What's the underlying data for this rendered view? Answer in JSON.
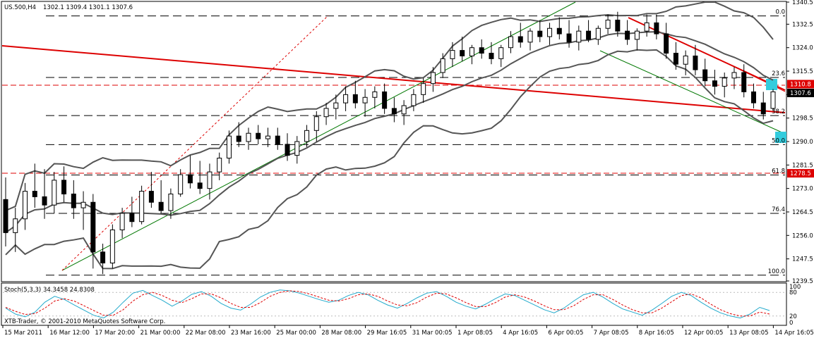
{
  "header": {
    "symbol": "US.500,H4",
    "ohlc": "1302.1 1309.4 1301.1 1307.6"
  },
  "watermark": "XTB-Trader, © 2001-2010 MetaQuotes Software Corp.",
  "stoch_header": "Stoch(5,3,3) 34.3458 24.8308",
  "chart_data": [
    {
      "type": "candlestick",
      "y_ticks": [
        1340.5,
        1332.5,
        1324.0,
        1315.5,
        1307.0,
        1298.5,
        1290.0,
        1281.5,
        1273.0,
        1264.5,
        1256.0,
        1247.5,
        1239.5
      ],
      "x_ticks": [
        "15 Mar 2011",
        "16 Mar 12:00",
        "17 Mar 20:00",
        "21 Mar 00:00",
        "22 Mar 08:00",
        "23 Mar 16:00",
        "25 Mar 00:00",
        "28 Mar 08:00",
        "29 Mar 16:05",
        "31 Mar 00:05",
        "1 Apr 08:05",
        "4 Apr 16:05",
        "6 Apr 00:05",
        "7 Apr 08:05",
        "8 Apr 16:05",
        "12 Apr 00:05",
        "13 Apr 08:05",
        "14 Apr 16:05"
      ],
      "ylim": [
        1239.5,
        1340.5
      ],
      "price_labels": [
        {
          "text": "1310.8",
          "value": 1310.8,
          "color": "#dd0000"
        },
        {
          "text": "1307.6",
          "value": 1307.6,
          "color": "#000000"
        },
        {
          "text": "1278.5",
          "value": 1278.5,
          "color": "#dd0000"
        }
      ],
      "fibonacci": [
        {
          "level": "0.0",
          "price": 1335.5
        },
        {
          "level": "23.6",
          "price": 1313.2
        },
        {
          "level": "38.2",
          "price": 1299.4
        },
        {
          "level": "50.0",
          "price": 1288.9
        },
        {
          "level": "61.8",
          "price": 1277.9
        },
        {
          "level": "76.4",
          "price": 1264.0
        },
        {
          "level": "100.0",
          "price": 1241.6
        }
      ],
      "candles": [
        [
          1269,
          1277,
          1252,
          1257
        ],
        [
          1257,
          1266,
          1250,
          1262
        ],
        [
          1262,
          1275,
          1258,
          1272
        ],
        [
          1272,
          1282,
          1266,
          1270
        ],
        [
          1270,
          1280,
          1262,
          1267
        ],
        [
          1267,
          1279,
          1264,
          1276
        ],
        [
          1276,
          1281,
          1268,
          1271
        ],
        [
          1271,
          1276,
          1262,
          1266
        ],
        [
          1266,
          1272,
          1258,
          1268
        ],
        [
          1268,
          1271,
          1244,
          1250
        ],
        [
          1250,
          1253,
          1242,
          1246
        ],
        [
          1246,
          1260,
          1244,
          1258
        ],
        [
          1258,
          1266,
          1255,
          1264
        ],
        [
          1264,
          1270,
          1259,
          1261
        ],
        [
          1261,
          1274,
          1260,
          1272
        ],
        [
          1272,
          1279,
          1266,
          1268
        ],
        [
          1268,
          1276,
          1264,
          1265
        ],
        [
          1265,
          1273,
          1262,
          1271
        ],
        [
          1271,
          1280,
          1270,
          1278
        ],
        [
          1278,
          1285,
          1273,
          1275
        ],
        [
          1275,
          1283,
          1271,
          1273
        ],
        [
          1273,
          1282,
          1269,
          1279
        ],
        [
          1279,
          1286,
          1276,
          1284
        ],
        [
          1284,
          1294,
          1282,
          1292
        ],
        [
          1292,
          1297,
          1288,
          1290
        ],
        [
          1290,
          1295,
          1287,
          1293
        ],
        [
          1293,
          1296,
          1289,
          1291
        ],
        [
          1291,
          1295,
          1288,
          1292
        ],
        [
          1292,
          1295,
          1287,
          1289
        ],
        [
          1289,
          1293,
          1283,
          1285
        ],
        [
          1285,
          1292,
          1282,
          1290
        ],
        [
          1290,
          1296,
          1288,
          1294
        ],
        [
          1294,
          1301,
          1290,
          1299
        ],
        [
          1299,
          1304,
          1296,
          1302
        ],
        [
          1302,
          1307,
          1298,
          1304
        ],
        [
          1304,
          1310,
          1301,
          1307
        ],
        [
          1307,
          1312,
          1302,
          1304
        ],
        [
          1304,
          1309,
          1299,
          1306
        ],
        [
          1306,
          1310,
          1302,
          1308
        ],
        [
          1308,
          1311,
          1300,
          1302
        ],
        [
          1302,
          1306,
          1297,
          1300
        ],
        [
          1300,
          1305,
          1296,
          1303
        ],
        [
          1303,
          1309,
          1301,
          1307
        ],
        [
          1307,
          1313,
          1304,
          1311
        ],
        [
          1311,
          1317,
          1308,
          1315
        ],
        [
          1315,
          1322,
          1313,
          1320
        ],
        [
          1320,
          1326,
          1317,
          1323
        ],
        [
          1323,
          1328,
          1319,
          1321
        ],
        [
          1321,
          1325,
          1318,
          1324
        ],
        [
          1324,
          1327,
          1320,
          1322
        ],
        [
          1322,
          1326,
          1318,
          1320
        ],
        [
          1320,
          1325,
          1317,
          1324
        ],
        [
          1324,
          1330,
          1322,
          1328
        ],
        [
          1328,
          1333,
          1324,
          1326
        ],
        [
          1326,
          1331,
          1323,
          1330
        ],
        [
          1330,
          1334,
          1326,
          1328
        ],
        [
          1328,
          1333,
          1325,
          1331
        ],
        [
          1331,
          1335,
          1327,
          1329
        ],
        [
          1329,
          1334,
          1324,
          1326
        ],
        [
          1326,
          1332,
          1323,
          1330
        ],
        [
          1330,
          1334,
          1326,
          1327
        ],
        [
          1327,
          1332,
          1325,
          1331
        ],
        [
          1331,
          1336,
          1329,
          1334
        ],
        [
          1334,
          1337,
          1328,
          1330
        ],
        [
          1330,
          1334,
          1325,
          1327
        ],
        [
          1327,
          1331,
          1323,
          1330
        ],
        [
          1330,
          1336,
          1328,
          1333
        ],
        [
          1333,
          1336,
          1327,
          1329
        ],
        [
          1329,
          1333,
          1320,
          1322
        ],
        [
          1322,
          1326,
          1316,
          1318
        ],
        [
          1318,
          1323,
          1314,
          1321
        ],
        [
          1321,
          1325,
          1314,
          1316
        ],
        [
          1316,
          1320,
          1310,
          1312
        ],
        [
          1312,
          1316,
          1307,
          1310
        ],
        [
          1310,
          1315,
          1306,
          1313
        ],
        [
          1313,
          1317,
          1309,
          1315
        ],
        [
          1315,
          1318,
          1306,
          1308
        ],
        [
          1308,
          1311,
          1302,
          1304
        ],
        [
          1304,
          1308,
          1298,
          1300
        ],
        [
          1302,
          1309,
          1301,
          1308
        ]
      ]
    },
    {
      "type": "line",
      "title": "Stoch(5,3,3) 34.3458 24.8308",
      "ylim": [
        0,
        100
      ],
      "y_ticks": [
        20,
        80
      ],
      "series": [
        {
          "values": [
            40,
            25,
            18,
            30,
            55,
            70,
            62,
            48,
            35,
            22,
            15,
            30,
            55,
            78,
            85,
            72,
            60,
            45,
            58,
            75,
            82,
            70,
            52,
            40,
            35,
            50,
            68,
            80,
            86,
            84,
            78,
            70,
            62,
            55,
            60,
            72,
            80,
            74,
            60,
            48,
            40,
            52,
            66,
            78,
            82,
            70,
            55,
            45,
            38,
            50,
            64,
            76,
            72,
            60,
            48,
            36,
            28,
            40,
            58,
            74,
            80,
            68,
            52,
            38,
            30,
            22,
            35,
            52,
            70,
            80,
            72,
            55,
            40,
            28,
            20,
            15,
            25,
            42,
            34
          ]
        },
        {
          "values": [
            42,
            32,
            24,
            26,
            40,
            58,
            64,
            58,
            46,
            34,
            22,
            22,
            36,
            58,
            74,
            80,
            72,
            60,
            54,
            64,
            76,
            76,
            66,
            52,
            42,
            42,
            54,
            70,
            80,
            84,
            82,
            76,
            68,
            60,
            58,
            64,
            74,
            76,
            70,
            58,
            48,
            46,
            54,
            68,
            78,
            76,
            66,
            54,
            44,
            44,
            54,
            68,
            74,
            68,
            58,
            46,
            36,
            36,
            46,
            62,
            74,
            74,
            62,
            48,
            36,
            28,
            28,
            40,
            56,
            72,
            76,
            66,
            50,
            36,
            26,
            20,
            20,
            30,
            25
          ]
        }
      ]
    }
  ]
}
